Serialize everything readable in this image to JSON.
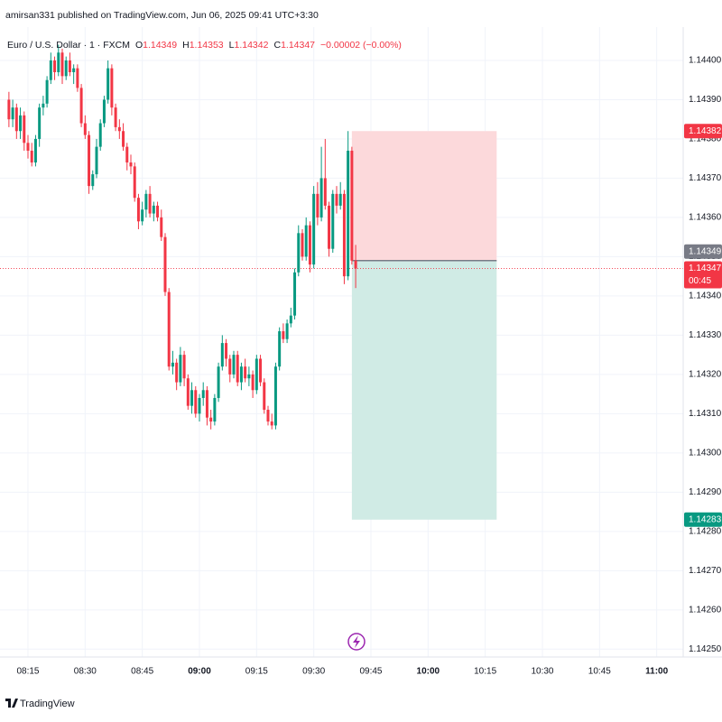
{
  "header": "amirsan331 published on TradingView.com, Jun 06, 2025 09:41 UTC+3:30",
  "footer": "TradingView",
  "chart_data": {
    "type": "candlestick",
    "symbol": "Euro / U.S. Dollar · 1 · FXCM",
    "ohlc_legend": [
      {
        "key": "O",
        "value": "1.14349"
      },
      {
        "key": "H",
        "value": "1.14353"
      },
      {
        "key": "L",
        "value": "1.14342"
      },
      {
        "key": "C",
        "value": "1.14347"
      }
    ],
    "change": "−0.00002 (−0.00%)",
    "up_color": "#089981",
    "down_color": "#f23645",
    "x": [
      490,
      491,
      492,
      493,
      494,
      495,
      496,
      497,
      498,
      499,
      500,
      501,
      502,
      503,
      504,
      505,
      506,
      507,
      508,
      509,
      510,
      511,
      512,
      513,
      514,
      515,
      516,
      517,
      518,
      519,
      520,
      521,
      522,
      523,
      524,
      525,
      526,
      527,
      528,
      529,
      530,
      531,
      532,
      533,
      534,
      535,
      536,
      537,
      538,
      539,
      540,
      541,
      542,
      543,
      544,
      545,
      546,
      547,
      548,
      549,
      550,
      551,
      552,
      553,
      554,
      555,
      556,
      557,
      558,
      559,
      560,
      561,
      562,
      563,
      564,
      565,
      566,
      567,
      568,
      569,
      570,
      571,
      572,
      573,
      574,
      575,
      576,
      577,
      578,
      579,
      580,
      581
    ],
    "open": [
      1.1439,
      1.14385,
      1.14388,
      1.14382,
      1.14386,
      1.14379,
      1.14377,
      1.14374,
      1.1438,
      1.14388,
      1.14389,
      1.14395,
      1.144,
      1.14397,
      1.14402,
      1.14396,
      1.144,
      1.14397,
      1.14398,
      1.14393,
      1.14384,
      1.14381,
      1.14368,
      1.14371,
      1.14378,
      1.14384,
      1.1439,
      1.14398,
      1.14388,
      1.14383,
      1.14382,
      1.14378,
      1.14374,
      1.14373,
      1.14365,
      1.14359,
      1.14362,
      1.14366,
      1.14361,
      1.14363,
      1.1436,
      1.14355,
      1.14341,
      1.14322,
      1.14323,
      1.14318,
      1.14325,
      1.14319,
      1.14312,
      1.14316,
      1.1431,
      1.14314,
      1.14316,
      1.14309,
      1.14308,
      1.14314,
      1.14322,
      1.14328,
      1.14324,
      1.1432,
      1.14325,
      1.14318,
      1.14322,
      1.14319,
      1.1432,
      1.14316,
      1.14324,
      1.14318,
      1.14311,
      1.14308,
      1.14307,
      1.14322,
      1.14331,
      1.14329,
      1.14333,
      1.14335,
      1.14346,
      1.14356,
      1.1435,
      1.14358,
      1.14348,
      1.14366,
      1.1436,
      1.1437,
      1.14363,
      1.14352,
      1.14366,
      1.14363,
      1.14366,
      1.14345,
      1.14377,
      1.14349
    ],
    "high": [
      1.14392,
      1.1439,
      1.14389,
      1.14388,
      1.14387,
      1.14381,
      1.14379,
      1.14381,
      1.14389,
      1.14391,
      1.14396,
      1.14402,
      1.14401,
      1.14404,
      1.14403,
      1.14401,
      1.14402,
      1.14399,
      1.14399,
      1.14394,
      1.14386,
      1.14382,
      1.14372,
      1.1438,
      1.14385,
      1.14391,
      1.144,
      1.14399,
      1.14389,
      1.14385,
      1.14384,
      1.14379,
      1.14376,
      1.14374,
      1.14366,
      1.14364,
      1.14367,
      1.14368,
      1.14364,
      1.14364,
      1.14362,
      1.14356,
      1.14342,
      1.14326,
      1.14324,
      1.14327,
      1.14326,
      1.1432,
      1.14318,
      1.14317,
      1.14315,
      1.14318,
      1.14317,
      1.14311,
      1.14315,
      1.14323,
      1.1433,
      1.14329,
      1.14325,
      1.14326,
      1.14326,
      1.14323,
      1.14324,
      1.14322,
      1.14321,
      1.14325,
      1.14325,
      1.14319,
      1.14312,
      1.1431,
      1.14323,
      1.14332,
      1.14333,
      1.14334,
      1.14337,
      1.14347,
      1.14358,
      1.14357,
      1.1436,
      1.14359,
      1.14368,
      1.14369,
      1.14378,
      1.1438,
      1.14364,
      1.14367,
      1.14368,
      1.14369,
      1.14367,
      1.14382,
      1.14378,
      1.14353
    ],
    "low": [
      1.14383,
      1.14383,
      1.1438,
      1.1438,
      1.14377,
      1.14375,
      1.14373,
      1.14373,
      1.14378,
      1.14386,
      1.14388,
      1.14394,
      1.14395,
      1.14396,
      1.14394,
      1.14395,
      1.14396,
      1.14394,
      1.14392,
      1.14383,
      1.1438,
      1.14366,
      1.14367,
      1.1437,
      1.14377,
      1.14383,
      1.14389,
      1.14386,
      1.14382,
      1.1438,
      1.14377,
      1.14372,
      1.14371,
      1.14364,
      1.14357,
      1.14358,
      1.1436,
      1.1436,
      1.14359,
      1.14359,
      1.14354,
      1.1434,
      1.14321,
      1.1432,
      1.14316,
      1.14317,
      1.14317,
      1.14311,
      1.1431,
      1.14309,
      1.14308,
      1.14312,
      1.14307,
      1.14306,
      1.14307,
      1.14313,
      1.14321,
      1.14322,
      1.14318,
      1.14319,
      1.14317,
      1.14316,
      1.14318,
      1.14317,
      1.14314,
      1.14315,
      1.14317,
      1.1431,
      1.14307,
      1.14306,
      1.14306,
      1.14321,
      1.14328,
      1.14328,
      1.14332,
      1.14334,
      1.14345,
      1.14349,
      1.14349,
      1.14346,
      1.14347,
      1.14358,
      1.14359,
      1.14362,
      1.1435,
      1.14351,
      1.14361,
      1.14362,
      1.14343,
      1.14344,
      1.14348,
      1.14342
    ],
    "close": [
      1.14385,
      1.14388,
      1.14382,
      1.14386,
      1.14379,
      1.14377,
      1.14374,
      1.1438,
      1.14388,
      1.14389,
      1.14395,
      1.144,
      1.14397,
      1.14402,
      1.14396,
      1.144,
      1.14397,
      1.14398,
      1.14393,
      1.14384,
      1.14381,
      1.14368,
      1.14371,
      1.14378,
      1.14384,
      1.1439,
      1.14398,
      1.14388,
      1.14383,
      1.14382,
      1.14378,
      1.14374,
      1.14373,
      1.14365,
      1.14359,
      1.14362,
      1.14366,
      1.14361,
      1.14363,
      1.1436,
      1.14355,
      1.14341,
      1.14322,
      1.14323,
      1.14318,
      1.14325,
      1.14319,
      1.14312,
      1.14316,
      1.1431,
      1.14314,
      1.14316,
      1.14309,
      1.14308,
      1.14314,
      1.14322,
      1.14328,
      1.14324,
      1.1432,
      1.14325,
      1.14318,
      1.14322,
      1.14319,
      1.1432,
      1.14316,
      1.14324,
      1.14318,
      1.14311,
      1.14308,
      1.14307,
      1.14322,
      1.14331,
      1.14329,
      1.14333,
      1.14335,
      1.14346,
      1.14356,
      1.1435,
      1.14358,
      1.14348,
      1.14366,
      1.1436,
      1.1437,
      1.14363,
      1.14352,
      1.14366,
      1.14363,
      1.14366,
      1.14345,
      1.14377,
      1.14349,
      1.14347
    ],
    "xlim": [
      487.66,
      666.95
    ],
    "xticks": [
      {
        "value": 495,
        "label": "08:15"
      },
      {
        "value": 510,
        "label": "08:30"
      },
      {
        "value": 525,
        "label": "08:45"
      },
      {
        "value": 540,
        "label": "09:00"
      },
      {
        "value": 555,
        "label": "09:15"
      },
      {
        "value": 570,
        "label": "09:30"
      },
      {
        "value": 585,
        "label": "09:45"
      },
      {
        "value": 600,
        "label": "10:00"
      },
      {
        "value": 615,
        "label": "10:15"
      },
      {
        "value": 630,
        "label": "10:30"
      },
      {
        "value": 645,
        "label": "10:45"
      },
      {
        "value": 660,
        "label": "11:00"
      }
    ],
    "ylim": [
      1.14248,
      1.144085
    ],
    "yticks": [
      {
        "value": 1.1425,
        "label": "1.14250"
      },
      {
        "value": 1.1426,
        "label": "1.14260"
      },
      {
        "value": 1.1427,
        "label": "1.14270"
      },
      {
        "value": 1.1428,
        "label": "1.14280"
      },
      {
        "value": 1.1429,
        "label": "1.14290"
      },
      {
        "value": 1.143,
        "label": "1.14300"
      },
      {
        "value": 1.1431,
        "label": "1.14310"
      },
      {
        "value": 1.1432,
        "label": "1.14320"
      },
      {
        "value": 1.1433,
        "label": "1.14330"
      },
      {
        "value": 1.1434,
        "label": "1.14340"
      },
      {
        "value": 1.1435,
        "label": "1.14350"
      },
      {
        "value": 1.1436,
        "label": "1.14360"
      },
      {
        "value": 1.1437,
        "label": "1.14370"
      },
      {
        "value": 1.1438,
        "label": "1.14380"
      },
      {
        "value": 1.1439,
        "label": "1.14390"
      },
      {
        "value": 1.144,
        "label": "1.14400"
      }
    ],
    "grid": true,
    "position": {
      "start": 580,
      "end": 618,
      "stop": {
        "value": 1.14382,
        "label": "1.14382",
        "color": "#f23645",
        "fill": "#fcd9db"
      },
      "entry": {
        "value": 1.14349,
        "label": "1.14349",
        "color": "#787b86"
      },
      "target": {
        "value": 1.14283,
        "label": "1.14283",
        "color": "#089981",
        "fill": "#d0ebe5"
      }
    },
    "last": {
      "value": 1.14347,
      "label": "1.14347",
      "countdown": "00:45",
      "color": "#f23645"
    }
  }
}
